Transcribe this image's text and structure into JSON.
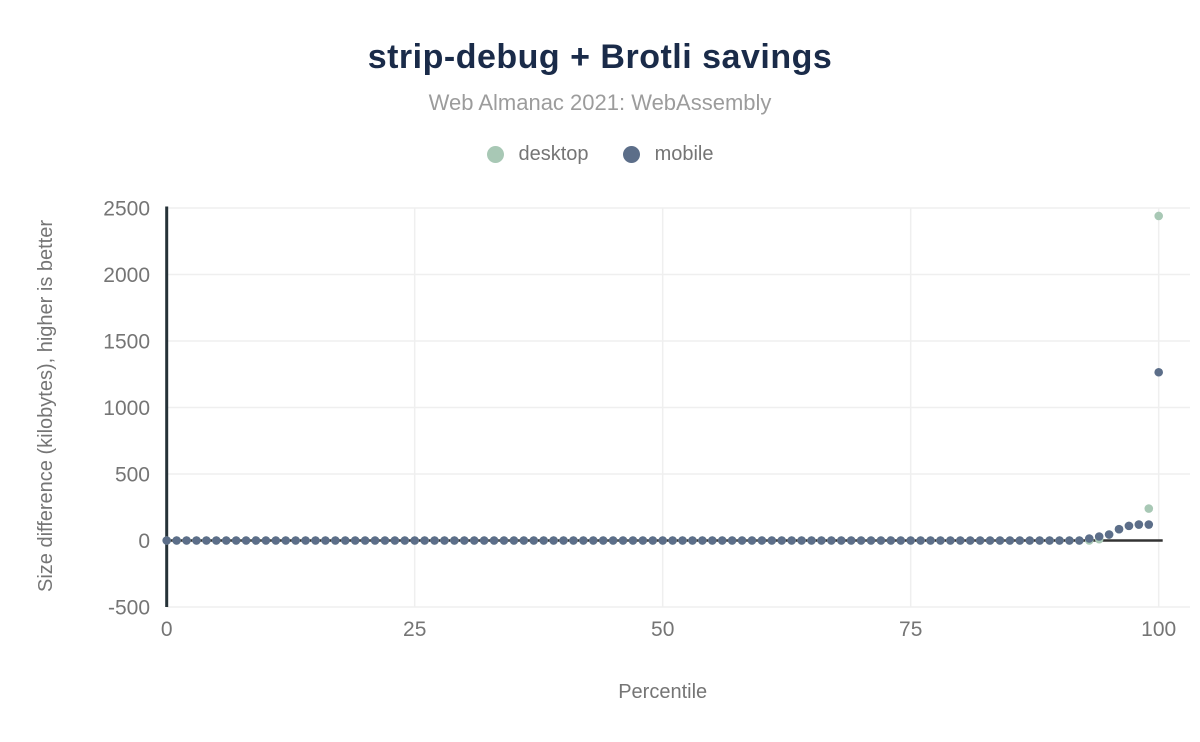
{
  "header": {
    "title": "strip-debug + Brotli savings",
    "subtitle": "Web Almanac 2021: WebAssembly"
  },
  "style": {
    "title_color": "#1a2b49",
    "subtitle_color": "#9c9c9c",
    "tick_text_color": "#757575",
    "axis_title_color": "#757575",
    "grid_color": "#efefef",
    "zero_line_color": "#333333",
    "y_axis_line_color": "#263238",
    "desktop_color": "#a8c8b5",
    "mobile_color": "#5c6e89"
  },
  "chart_data": {
    "type": "scatter",
    "title": "strip-debug + Brotli savings",
    "subtitle": "Web Almanac 2021: WebAssembly",
    "xlabel": "Percentile",
    "ylabel": "Size difference (kilobytes), higher is better",
    "xlim": [
      0,
      100
    ],
    "ylim": [
      -500,
      2500
    ],
    "xticks": [
      0,
      25,
      50,
      75,
      100
    ],
    "yticks": [
      2500,
      2000,
      1500,
      1000,
      500,
      0,
      -500
    ],
    "grid": true,
    "legend_position": "top",
    "x": [
      0,
      1,
      2,
      3,
      4,
      5,
      6,
      7,
      8,
      9,
      10,
      11,
      12,
      13,
      14,
      15,
      16,
      17,
      18,
      19,
      20,
      21,
      22,
      23,
      24,
      25,
      26,
      27,
      28,
      29,
      30,
      31,
      32,
      33,
      34,
      35,
      36,
      37,
      38,
      39,
      40,
      41,
      42,
      43,
      44,
      45,
      46,
      47,
      48,
      49,
      50,
      51,
      52,
      53,
      54,
      55,
      56,
      57,
      58,
      59,
      60,
      61,
      62,
      63,
      64,
      65,
      66,
      67,
      68,
      69,
      70,
      71,
      72,
      73,
      74,
      75,
      76,
      77,
      78,
      79,
      80,
      81,
      82,
      83,
      84,
      85,
      86,
      87,
      88,
      89,
      90,
      91,
      92,
      93,
      94,
      95,
      96,
      97,
      98,
      99,
      100
    ],
    "series": [
      {
        "name": "desktop",
        "color": "#a8c8b5",
        "values": [
          0,
          0,
          0,
          0,
          0,
          0,
          0,
          0,
          0,
          0,
          0,
          0,
          0,
          0,
          0,
          0,
          0,
          0,
          0,
          0,
          0,
          0,
          0,
          0,
          0,
          0,
          0,
          0,
          0,
          0,
          0,
          0,
          0,
          0,
          0,
          0,
          0,
          0,
          0,
          0,
          0,
          0,
          0,
          0,
          0,
          0,
          0,
          0,
          0,
          0,
          0,
          0,
          0,
          0,
          0,
          0,
          0,
          0,
          0,
          0,
          0,
          0,
          0,
          0,
          0,
          0,
          0,
          0,
          0,
          0,
          0,
          0,
          0,
          0,
          0,
          0,
          0,
          0,
          0,
          0,
          0,
          0,
          0,
          0,
          0,
          0,
          0,
          0,
          0,
          0,
          0,
          0,
          0,
          0,
          10,
          45,
          85,
          110,
          120,
          240,
          2440
        ]
      },
      {
        "name": "mobile",
        "color": "#5c6e89",
        "values": [
          0,
          0,
          0,
          0,
          0,
          0,
          0,
          0,
          0,
          0,
          0,
          0,
          0,
          0,
          0,
          0,
          0,
          0,
          0,
          0,
          0,
          0,
          0,
          0,
          0,
          0,
          0,
          0,
          0,
          0,
          0,
          0,
          0,
          0,
          0,
          0,
          0,
          0,
          0,
          0,
          0,
          0,
          0,
          0,
          0,
          0,
          0,
          0,
          0,
          0,
          0,
          0,
          0,
          0,
          0,
          0,
          0,
          0,
          0,
          0,
          0,
          0,
          0,
          0,
          0,
          0,
          0,
          0,
          0,
          0,
          0,
          0,
          0,
          0,
          0,
          0,
          0,
          0,
          0,
          0,
          0,
          0,
          0,
          0,
          0,
          0,
          0,
          0,
          0,
          0,
          0,
          0,
          0,
          15,
          30,
          45,
          85,
          110,
          120,
          120,
          1265
        ]
      }
    ]
  }
}
